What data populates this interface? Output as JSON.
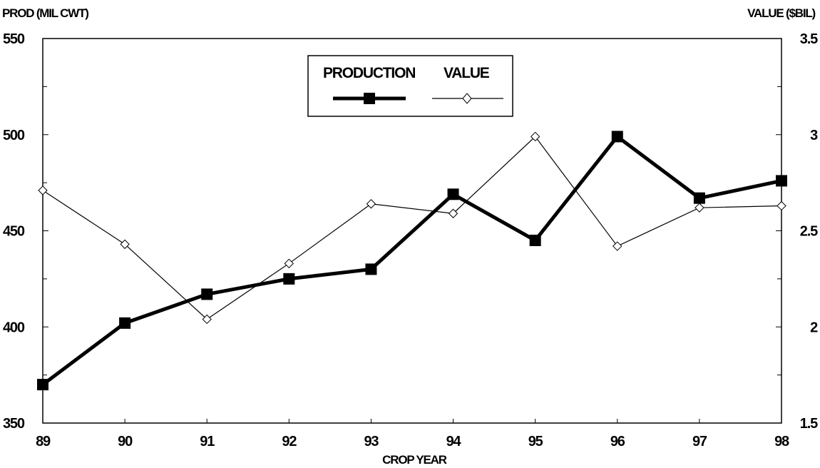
{
  "chart_data": {
    "type": "line",
    "title": "",
    "xlabel": "CROP YEAR",
    "y_left_label": "PROD (MIL CWT)",
    "y_right_label": "VALUE ($BIL)",
    "x": [
      "89",
      "90",
      "91",
      "92",
      "93",
      "94",
      "95",
      "96",
      "97",
      "98"
    ],
    "y_left_range": [
      350,
      550
    ],
    "y_left_ticks": [
      "350",
      "400",
      "450",
      "500",
      "550"
    ],
    "y_right_range": [
      1.5,
      3.5
    ],
    "y_right_ticks": [
      "1.5",
      "2",
      "2.5",
      "3",
      "3.5"
    ],
    "legend_position": "top-center",
    "grid": false,
    "series": [
      {
        "name": "PRODUCTION",
        "axis": "left",
        "marker": "filled-square",
        "color": "#000000",
        "values": [
          370,
          402,
          417,
          425,
          430,
          469,
          445,
          499,
          467,
          476
        ]
      },
      {
        "name": "VALUE",
        "axis": "right",
        "marker": "open-diamond",
        "color": "#000000",
        "values": [
          2.71,
          2.43,
          2.04,
          2.33,
          2.64,
          2.59,
          2.99,
          2.42,
          2.62,
          2.63
        ]
      }
    ]
  }
}
